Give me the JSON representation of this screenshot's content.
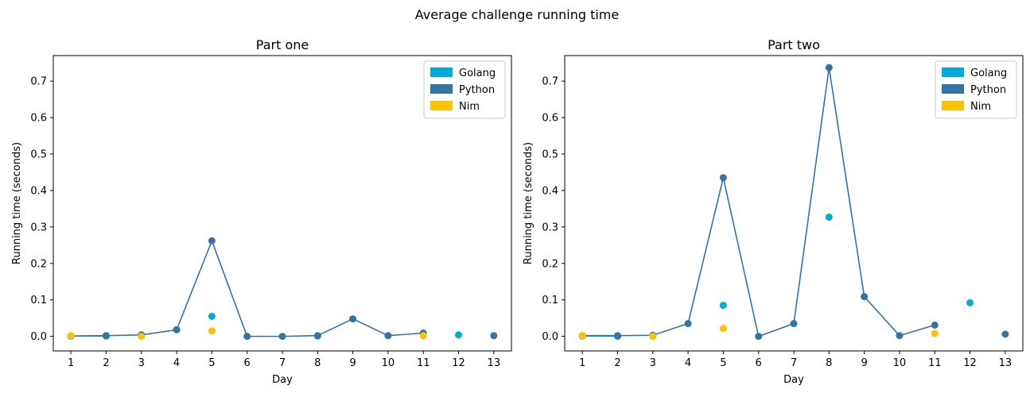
{
  "figure_title": "Average challenge running time",
  "colors": {
    "Golang": "#00acd7",
    "Python": "#3572a5",
    "Nim": "#ffc200"
  },
  "chart_data": [
    {
      "type": "line",
      "title": "Part one",
      "xlabel": "Day",
      "ylabel": "Running time (seconds)",
      "x": [
        1,
        2,
        3,
        4,
        5,
        6,
        7,
        8,
        9,
        10,
        11,
        12,
        13
      ],
      "xlim": [
        0.5,
        13.5
      ],
      "ylim": [
        -0.04,
        0.77
      ],
      "yticks": [
        "0.0",
        "0.1",
        "0.2",
        "0.3",
        "0.4",
        "0.5",
        "0.6",
        "0.7"
      ],
      "legend": {
        "position": "top-right",
        "entries": [
          "Golang",
          "Python",
          "Nim"
        ]
      },
      "series": [
        {
          "name": "Golang",
          "line_days": [
            1,
            2
          ],
          "points": [
            [
              1,
              0.001
            ],
            [
              2,
              0.001
            ],
            [
              5,
              0.055
            ],
            [
              8,
              0.001
            ],
            [
              12,
              0.004
            ]
          ]
        },
        {
          "name": "Python",
          "line_days": [
            1,
            2,
            3,
            4,
            5,
            6,
            7,
            8,
            9,
            10,
            11
          ],
          "points": [
            [
              1,
              0.001
            ],
            [
              2,
              0.002
            ],
            [
              3,
              0.004
            ],
            [
              4,
              0.018
            ],
            [
              5,
              0.262
            ],
            [
              6,
              0.0
            ],
            [
              7,
              0.0
            ],
            [
              8,
              0.002
            ],
            [
              9,
              0.048
            ],
            [
              10,
              0.002
            ],
            [
              11,
              0.009
            ],
            [
              13,
              0.002
            ]
          ]
        },
        {
          "name": "Nim",
          "line_days": [],
          "points": [
            [
              1,
              0.002
            ],
            [
              3,
              0.0
            ],
            [
              5,
              0.015
            ],
            [
              11,
              0.002
            ]
          ]
        }
      ]
    },
    {
      "type": "line",
      "title": "Part two",
      "xlabel": "Day",
      "ylabel": "Running time (seconds)",
      "x": [
        1,
        2,
        3,
        4,
        5,
        6,
        7,
        8,
        9,
        10,
        11,
        12,
        13
      ],
      "xlim": [
        0.5,
        13.5
      ],
      "ylim": [
        -0.04,
        0.77
      ],
      "yticks": [
        "0.0",
        "0.1",
        "0.2",
        "0.3",
        "0.4",
        "0.5",
        "0.6",
        "0.7"
      ],
      "legend": {
        "position": "top-right",
        "entries": [
          "Golang",
          "Python",
          "Nim"
        ]
      },
      "series": [
        {
          "name": "Golang",
          "line_days": [
            1,
            2
          ],
          "points": [
            [
              1,
              0.001
            ],
            [
              2,
              0.0
            ],
            [
              5,
              0.085
            ],
            [
              8,
              0.327
            ],
            [
              12,
              0.092
            ]
          ]
        },
        {
          "name": "Python",
          "line_days": [
            1,
            2,
            3,
            4,
            5,
            6,
            7,
            8,
            9,
            10,
            11
          ],
          "points": [
            [
              1,
              0.002
            ],
            [
              2,
              0.002
            ],
            [
              3,
              0.003
            ],
            [
              4,
              0.035
            ],
            [
              5,
              0.435
            ],
            [
              6,
              0.0
            ],
            [
              7,
              0.035
            ],
            [
              8,
              0.737
            ],
            [
              9,
              0.109
            ],
            [
              10,
              0.002
            ],
            [
              11,
              0.031
            ],
            [
              13,
              0.006
            ]
          ]
        },
        {
          "name": "Nim",
          "line_days": [],
          "points": [
            [
              1,
              0.002
            ],
            [
              3,
              0.0
            ],
            [
              5,
              0.022
            ],
            [
              11,
              0.008
            ]
          ]
        }
      ]
    }
  ]
}
